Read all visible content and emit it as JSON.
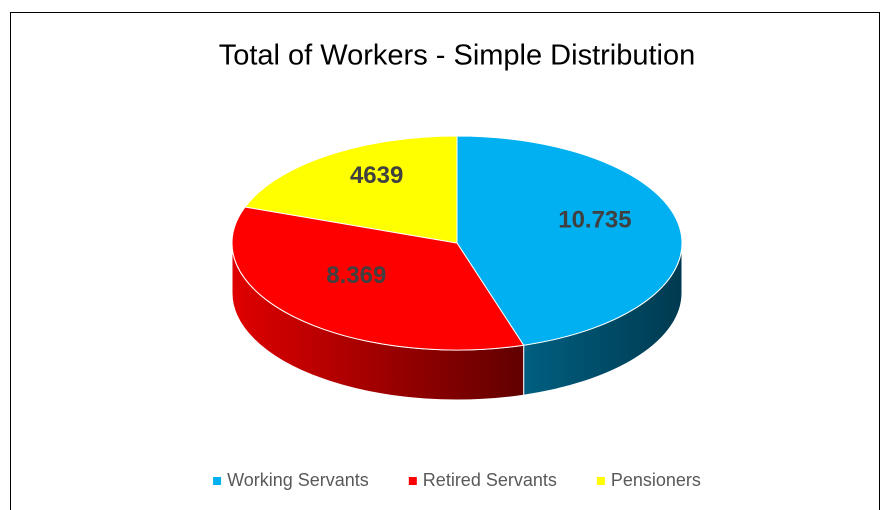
{
  "chart_data": {
    "type": "pie",
    "title": "Total of Workers - Simple Distribution",
    "categories": [
      "Working Servants",
      "Retired Servants",
      "Pensioners"
    ],
    "values": [
      10735,
      8369,
      4639
    ],
    "value_labels": [
      "10.735",
      "8.369",
      "4639"
    ],
    "colors": [
      "#00b0f0",
      "#ff0000",
      "#ffff00"
    ],
    "legend": "bottom"
  }
}
